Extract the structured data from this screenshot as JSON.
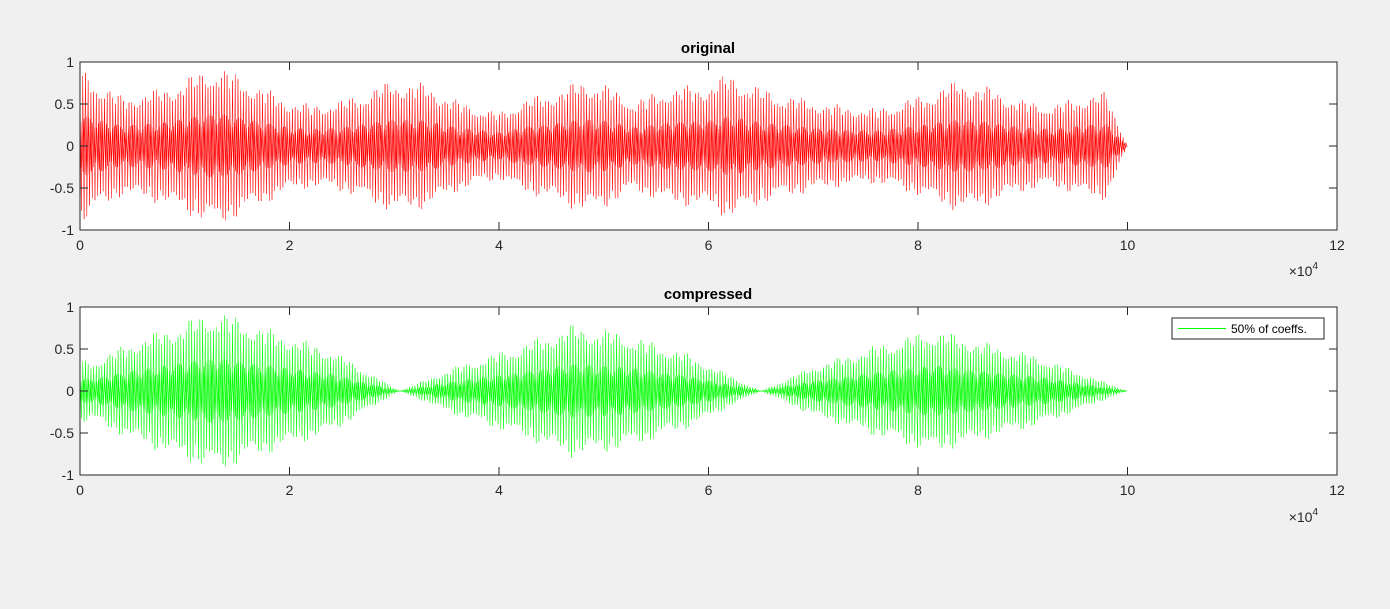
{
  "chart_data": [
    {
      "type": "line",
      "title": "original",
      "xlabel": "",
      "ylabel": "",
      "x_range": [
        0,
        120000
      ],
      "y_range": [
        -1,
        1
      ],
      "x_ticks": [
        0,
        20000,
        40000,
        60000,
        80000,
        100000,
        120000
      ],
      "x_tick_labels": [
        "0",
        "2",
        "4",
        "6",
        "8",
        "10",
        "12"
      ],
      "y_ticks": [
        1,
        0.5,
        0,
        -0.5,
        -1
      ],
      "y_tick_labels": [
        "1",
        "0.5",
        "0",
        "-0.5",
        "-1"
      ],
      "x_exponent_label": "×10",
      "x_exponent_power": "4",
      "grid": false,
      "color": "#ff0000",
      "series": [
        {
          "signal_length": 100000,
          "envelope_x": [
            0,
            1000,
            4000,
            8000,
            13000,
            16000,
            20000,
            22000,
            25000,
            30000,
            33000,
            36000,
            40000,
            42000,
            45000,
            48000,
            50000,
            53000,
            56000,
            60000,
            62000,
            65000,
            68000,
            72000,
            76000,
            80000,
            82000,
            84000,
            87000,
            90000,
            93000,
            96000,
            98000,
            100000
          ],
          "envelope_y": [
            0.95,
            0.85,
            0.6,
            0.7,
            0.98,
            0.8,
            0.55,
            0.5,
            0.55,
            0.8,
            0.75,
            0.55,
            0.4,
            0.55,
            0.65,
            0.8,
            0.75,
            0.55,
            0.7,
            0.75,
            0.88,
            0.7,
            0.6,
            0.5,
            0.45,
            0.6,
            0.7,
            0.8,
            0.7,
            0.55,
            0.5,
            0.62,
            0.65,
            0.0
          ]
        }
      ]
    },
    {
      "type": "line",
      "title": "compressed",
      "xlabel": "",
      "ylabel": "",
      "x_range": [
        0,
        120000
      ],
      "y_range": [
        -1,
        1
      ],
      "x_ticks": [
        0,
        20000,
        40000,
        60000,
        80000,
        100000,
        120000
      ],
      "x_tick_labels": [
        "0",
        "2",
        "4",
        "6",
        "8",
        "10",
        "12"
      ],
      "y_ticks": [
        1,
        0.5,
        0,
        -0.5,
        -1
      ],
      "y_tick_labels": [
        "1",
        "0.5",
        "0",
        "-0.5",
        "-1"
      ],
      "x_exponent_label": "×10",
      "x_exponent_power": "4",
      "grid": false,
      "color": "#00ff00",
      "legend": {
        "placement": "top-right",
        "entries": [
          "50% of coeffs."
        ]
      },
      "series": [
        {
          "name": "50% of coeffs.",
          "signal_length": 100000,
          "envelope_x": [
            0,
            1000,
            5000,
            13000,
            18000,
            24000,
            30500,
            36000,
            42000,
            47000,
            52000,
            58000,
            65000,
            70000,
            76000,
            81500,
            86000,
            92000,
            96000,
            100000
          ],
          "envelope_y": [
            0.4,
            0.35,
            0.6,
            0.98,
            0.75,
            0.5,
            0.0,
            0.3,
            0.55,
            0.8,
            0.7,
            0.45,
            0.0,
            0.3,
            0.55,
            0.75,
            0.6,
            0.4,
            0.2,
            0.0
          ]
        }
      ]
    }
  ]
}
